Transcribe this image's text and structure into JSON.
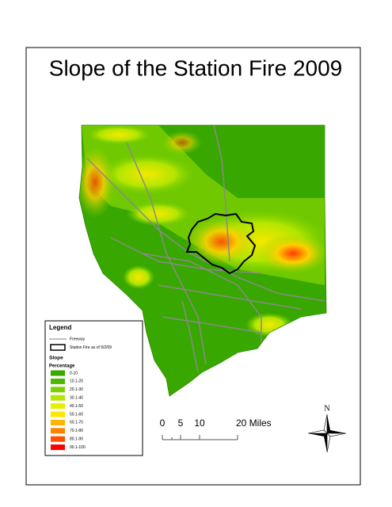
{
  "title": "Slope of the Station Fire 2009",
  "legend": {
    "title": "Legend",
    "items": [
      {
        "label": "Freeway",
        "color": "#808080"
      },
      {
        "label": "Station Fire as of 9/2/09",
        "color": "#000000"
      }
    ],
    "subtitle": "Slope",
    "field": "Percentage",
    "classes": [
      {
        "label": "0-10",
        "color": "#38a800"
      },
      {
        "label": "10.1-20",
        "color": "#4ab800"
      },
      {
        "label": "20.1-30",
        "color": "#7ed100"
      },
      {
        "label": "30.1-40",
        "color": "#b4e600"
      },
      {
        "label": "40.1-50",
        "color": "#e6f000"
      },
      {
        "label": "50.1-60",
        "color": "#ffe600"
      },
      {
        "label": "60.1-70",
        "color": "#ffb400"
      },
      {
        "label": "70.1-80",
        "color": "#ff8200"
      },
      {
        "label": "80.1-90",
        "color": "#ff5000"
      },
      {
        "label": "90.1-100",
        "color": "#ff0000"
      }
    ]
  },
  "scale_bar": {
    "labels": [
      "0",
      "5",
      "10",
      "20 Miles"
    ]
  },
  "north_arrow": {
    "label": "N"
  }
}
